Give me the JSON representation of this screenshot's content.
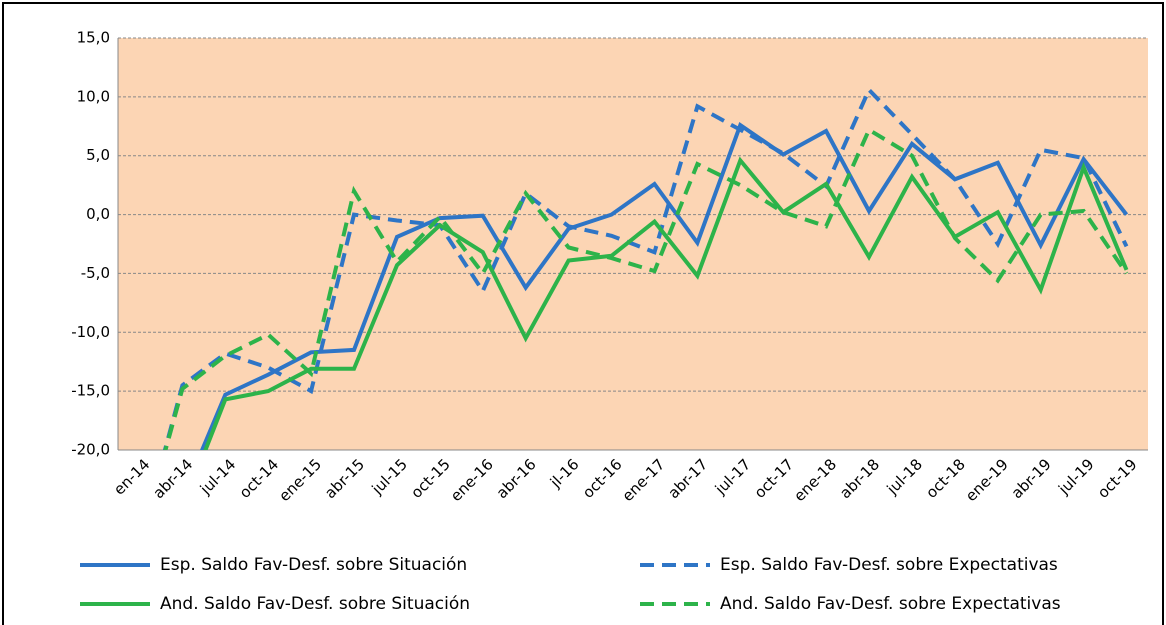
{
  "chart_data": {
    "type": "line",
    "categories": [
      "en-14",
      "abr-14",
      "jul-14",
      "oct-14",
      "ene-15",
      "abr-15",
      "jul-15",
      "oct-15",
      "ene-16",
      "abr-16",
      "jl-16",
      "oct-16",
      "ene-17",
      "abr-17",
      "jul-17",
      "oct-17",
      "ene-18",
      "abr-18",
      "jul-18",
      "oct-18",
      "ene-19",
      "abr-19",
      "jul-19",
      "oct-19"
    ],
    "series": [
      {
        "name": "Esp. Saldo Fav-Desf. sobre Situación",
        "color": "#2e75c6",
        "dash": "solid",
        "values": [
          null,
          -24,
          -15.3,
          -13.6,
          -11.7,
          -11.5,
          -1.9,
          -0.3,
          -0.1,
          -6.2,
          -1.2,
          0.0,
          2.6,
          -2.4,
          7.6,
          5.1,
          7.1,
          0.3,
          6.0,
          3.0,
          4.4,
          -2.6,
          4.7,
          0.0
        ]
      },
      {
        "name": "Esp. Saldo Fav-Desf. sobre Expectativas",
        "color": "#2e75c6",
        "dash": "dashed",
        "values": [
          -28,
          -14.5,
          -11.8,
          -13.0,
          -15.0,
          0.0,
          -0.5,
          -0.9,
          -6.5,
          1.8,
          -1.0,
          -1.8,
          -3.2,
          9.2,
          7.2,
          5.2,
          2.4,
          10.6,
          6.8,
          3.0,
          -2.5,
          5.5,
          4.8,
          -2.7
        ]
      },
      {
        "name": "And. Saldo Fav-Desf. sobre Situación",
        "color": "#2db34a",
        "dash": "solid",
        "values": [
          null,
          -25,
          -15.7,
          -15.0,
          -13.1,
          -13.1,
          -4.3,
          -0.9,
          -3.2,
          -10.5,
          -3.9,
          -3.5,
          -0.6,
          -5.2,
          4.6,
          0.2,
          2.6,
          -3.6,
          3.2,
          -1.9,
          0.2,
          -6.4,
          4.0,
          -4.7
        ]
      },
      {
        "name": "And. Saldo Fav-Desf. sobre Expectativas",
        "color": "#2db34a",
        "dash": "dashed",
        "values": [
          -28,
          -14.8,
          -12.0,
          -10.2,
          -13.5,
          2.0,
          -4.0,
          -0.2,
          -5.0,
          1.8,
          -2.8,
          -3.7,
          -4.8,
          4.3,
          2.5,
          0.2,
          -1.0,
          7.2,
          5.0,
          -2.0,
          -5.6,
          0.0,
          0.3,
          -5.0
        ]
      }
    ],
    "ylim": [
      -20,
      15
    ],
    "yticks": [
      {
        "value": -20,
        "label": "-20,0"
      },
      {
        "value": -15,
        "label": "-15,0"
      },
      {
        "value": -10,
        "label": "-10,0"
      },
      {
        "value": -5,
        "label": "-5,0"
      },
      {
        "value": 0,
        "label": "0,0"
      },
      {
        "value": 5,
        "label": "5,0"
      },
      {
        "value": 10,
        "label": "10,0"
      },
      {
        "value": 15,
        "label": "15,0"
      }
    ],
    "grid": true,
    "plot_background": "#fcd5b4",
    "legend": "bottom"
  }
}
